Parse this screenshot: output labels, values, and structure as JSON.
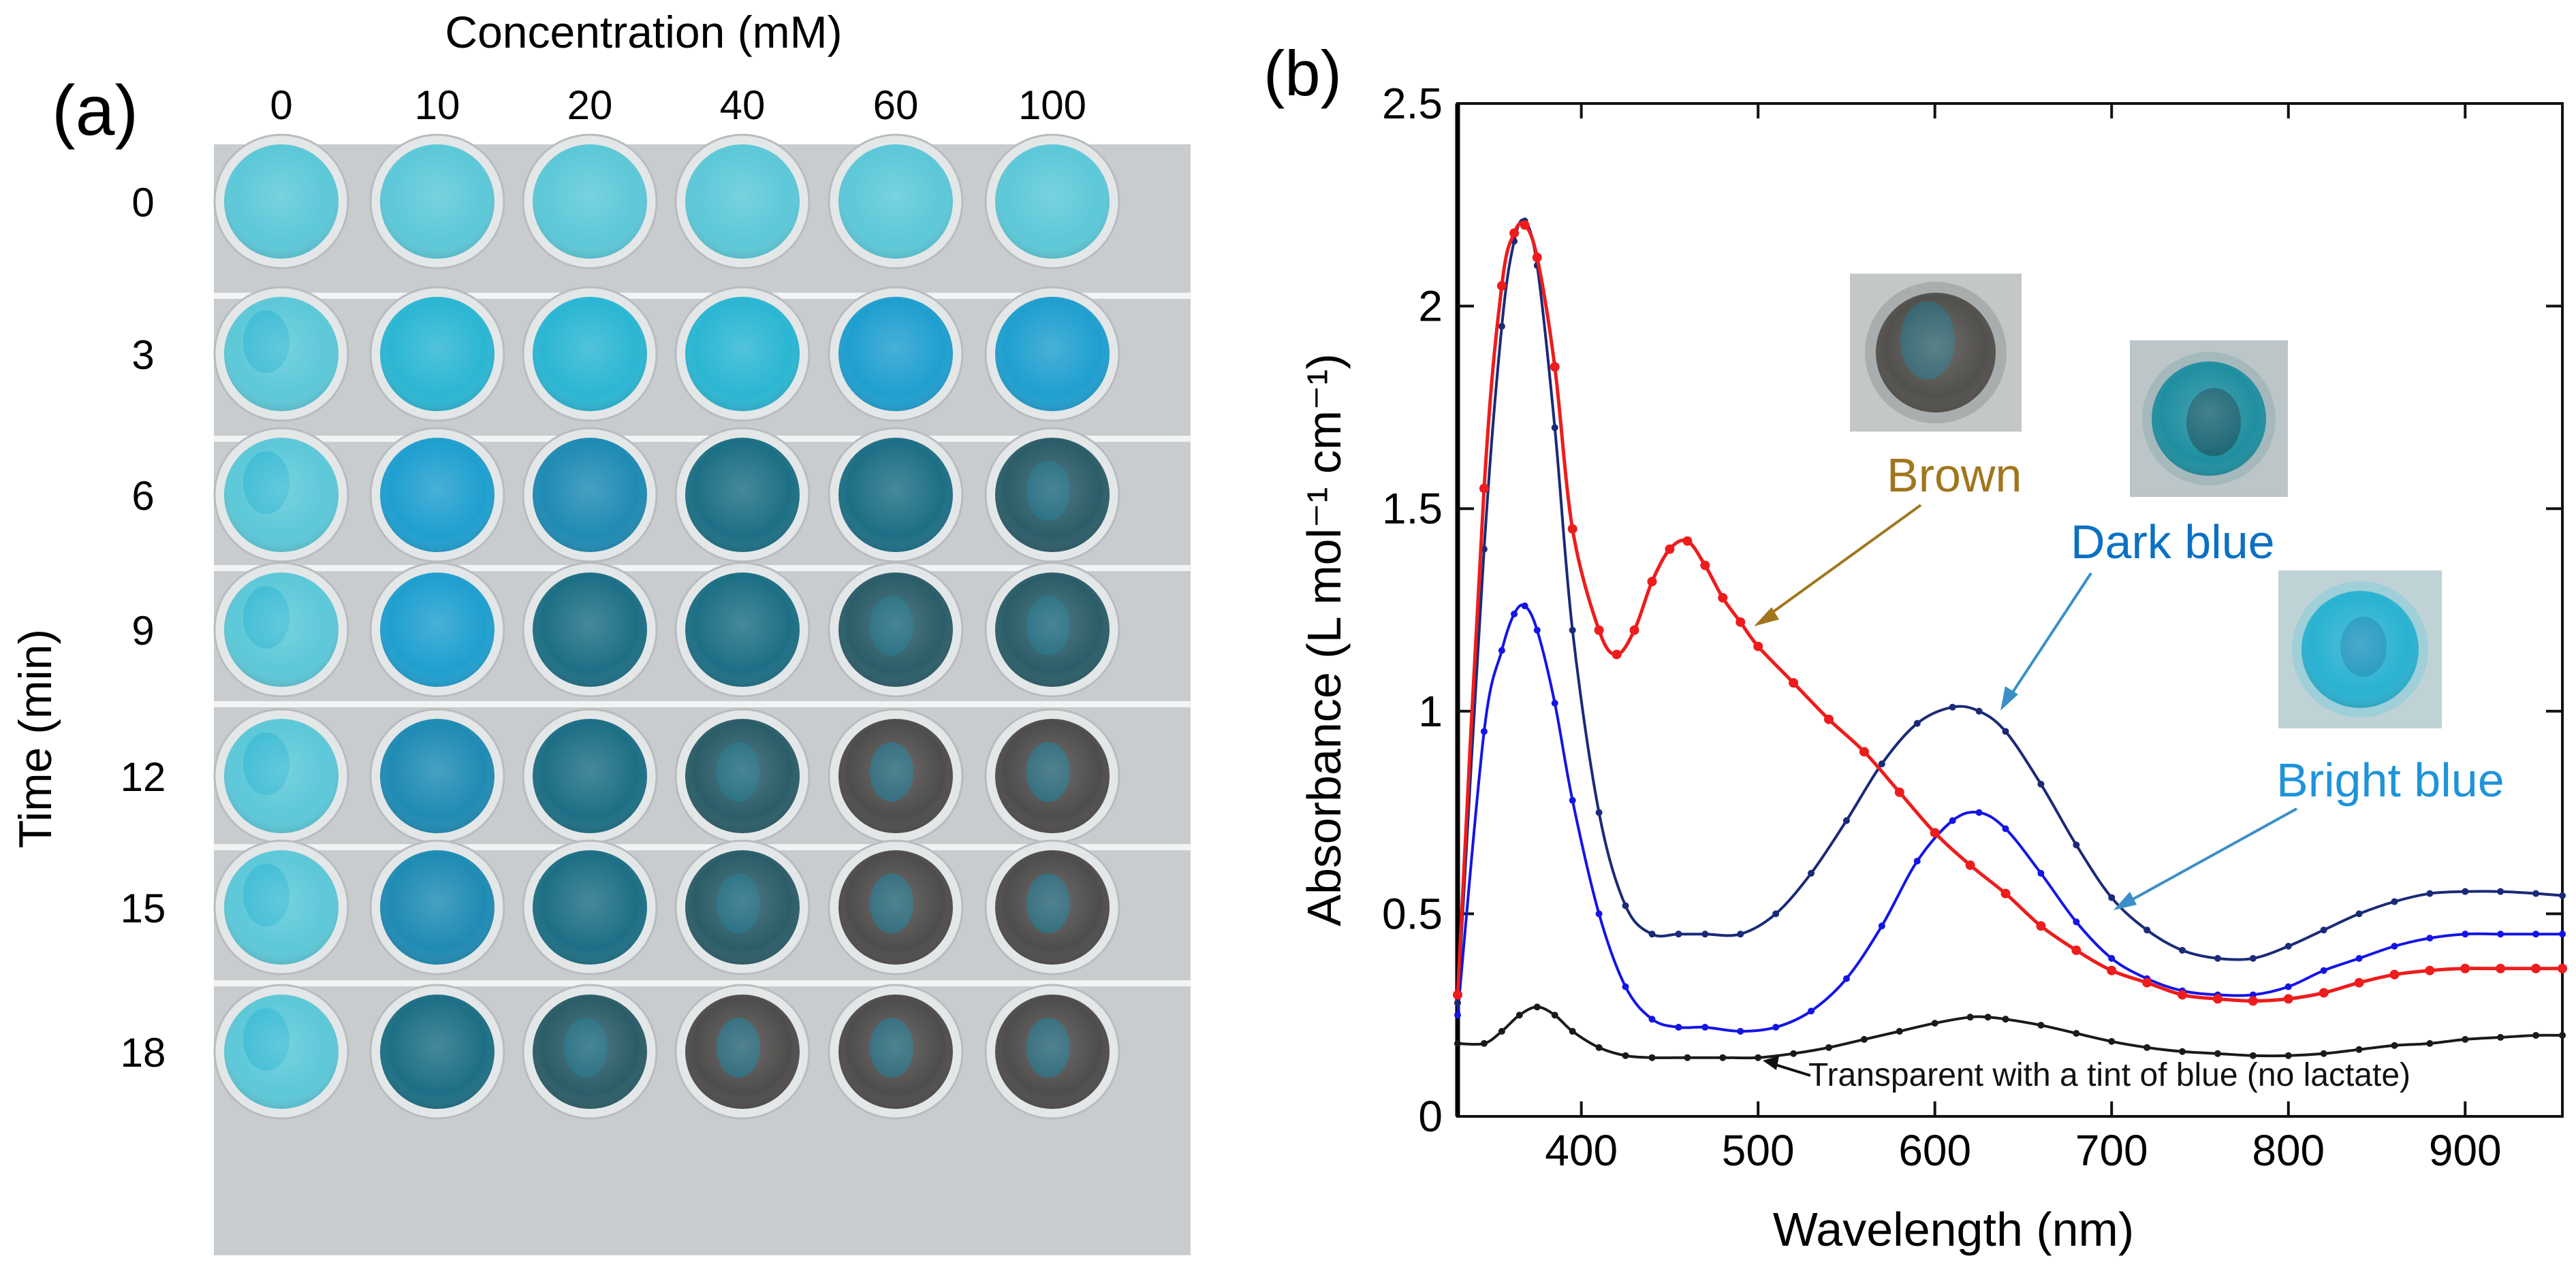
{
  "panel_a": {
    "label": "(a)",
    "column_title": "Concentration (mM)",
    "row_title": "Time (min)",
    "concentrations": [
      "0",
      "10",
      "20",
      "40",
      "60",
      "100"
    ],
    "times": [
      "0",
      "3",
      "6",
      "9",
      "12",
      "15",
      "18"
    ],
    "colors": {
      "plate": "#c9ccce",
      "divider": "#f2f3f3",
      "light_cyan": "#5cc8d8",
      "cyan": "#2bb6d3",
      "bright_blue": "#1f9fcf",
      "deep_blue": "#1f8bb4",
      "teal": "#1d6f85",
      "dark_teal": "#2b5d68",
      "brown": "#4f4d4b"
    }
  },
  "chart_data": {
    "type": "line",
    "label": "(b)",
    "xlabel": "Wavelength (nm)",
    "ylabel": "Absorbance  (L mol⁻¹ cm⁻¹)",
    "xlim": [
      330,
      955
    ],
    "ylim": [
      0,
      2.5
    ],
    "xticks": [
      400,
      500,
      600,
      700,
      800,
      900
    ],
    "yticks": [
      0,
      0.5,
      1,
      1.5,
      2,
      2.5
    ],
    "ytick_labels": [
      "0",
      "0.5",
      "1",
      "1.5",
      "2",
      "2.5"
    ],
    "series": [
      {
        "name": "Brown",
        "color": "#ee1c1c",
        "label_color": "#a0761c",
        "x": [
          330,
          345,
          355,
          362,
          368,
          375,
          385,
          395,
          410,
          420,
          430,
          440,
          450,
          460,
          470,
          480,
          490,
          500,
          520,
          540,
          560,
          580,
          600,
          620,
          640,
          660,
          680,
          700,
          720,
          740,
          760,
          780,
          800,
          820,
          840,
          860,
          880,
          900,
          920,
          940,
          955
        ],
        "y": [
          0.3,
          1.55,
          2.05,
          2.18,
          2.2,
          2.12,
          1.85,
          1.45,
          1.2,
          1.14,
          1.2,
          1.32,
          1.4,
          1.42,
          1.36,
          1.28,
          1.22,
          1.16,
          1.07,
          0.98,
          0.9,
          0.8,
          0.7,
          0.62,
          0.55,
          0.47,
          0.41,
          0.36,
          0.33,
          0.3,
          0.29,
          0.285,
          0.29,
          0.305,
          0.33,
          0.35,
          0.36,
          0.365,
          0.365,
          0.365,
          0.365
        ]
      },
      {
        "name": "Dark blue",
        "color": "#1a2a78",
        "label_color": "#0a70c4",
        "x": [
          330,
          345,
          355,
          362,
          368,
          375,
          385,
          395,
          410,
          425,
          440,
          455,
          470,
          490,
          510,
          530,
          550,
          570,
          590,
          610,
          625,
          640,
          660,
          680,
          700,
          720,
          740,
          760,
          780,
          800,
          820,
          840,
          860,
          880,
          900,
          920,
          940,
          955
        ],
        "y": [
          0.28,
          1.4,
          1.95,
          2.16,
          2.21,
          2.1,
          1.7,
          1.2,
          0.75,
          0.52,
          0.45,
          0.45,
          0.45,
          0.45,
          0.5,
          0.6,
          0.73,
          0.87,
          0.97,
          1.01,
          1.0,
          0.95,
          0.82,
          0.67,
          0.54,
          0.46,
          0.41,
          0.39,
          0.39,
          0.42,
          0.46,
          0.5,
          0.53,
          0.55,
          0.555,
          0.555,
          0.55,
          0.545
        ]
      },
      {
        "name": "Bright blue",
        "color": "#1414e6",
        "label_color": "#1f93d8",
        "x": [
          330,
          345,
          355,
          362,
          368,
          375,
          385,
          395,
          410,
          425,
          440,
          455,
          470,
          490,
          510,
          530,
          550,
          570,
          590,
          610,
          625,
          640,
          660,
          680,
          700,
          720,
          740,
          760,
          780,
          800,
          820,
          840,
          860,
          880,
          900,
          920,
          940,
          955
        ],
        "y": [
          0.25,
          0.95,
          1.15,
          1.24,
          1.26,
          1.2,
          1.02,
          0.78,
          0.5,
          0.32,
          0.24,
          0.22,
          0.22,
          0.21,
          0.22,
          0.26,
          0.34,
          0.47,
          0.63,
          0.73,
          0.75,
          0.71,
          0.6,
          0.48,
          0.39,
          0.34,
          0.31,
          0.3,
          0.3,
          0.32,
          0.36,
          0.39,
          0.42,
          0.44,
          0.45,
          0.45,
          0.45,
          0.45
        ]
      },
      {
        "name": "Transparent with a tint of blue (no lactate)",
        "color": "#1a1a1a",
        "label_color": "#111111",
        "x": [
          330,
          345,
          355,
          365,
          375,
          385,
          395,
          410,
          425,
          440,
          460,
          480,
          500,
          520,
          540,
          560,
          580,
          600,
          620,
          630,
          640,
          660,
          680,
          700,
          720,
          740,
          760,
          780,
          800,
          820,
          840,
          860,
          880,
          900,
          920,
          940,
          955
        ],
        "y": [
          0.18,
          0.18,
          0.21,
          0.25,
          0.27,
          0.25,
          0.21,
          0.17,
          0.15,
          0.145,
          0.145,
          0.145,
          0.145,
          0.155,
          0.17,
          0.19,
          0.21,
          0.23,
          0.245,
          0.245,
          0.24,
          0.225,
          0.205,
          0.185,
          0.17,
          0.16,
          0.155,
          0.15,
          0.15,
          0.155,
          0.165,
          0.175,
          0.18,
          0.19,
          0.195,
          0.2,
          0.2
        ]
      }
    ],
    "annotations": [
      "Brown",
      "Dark blue",
      "Bright blue",
      "Transparent with a tint of blue (no lactate)"
    ]
  }
}
